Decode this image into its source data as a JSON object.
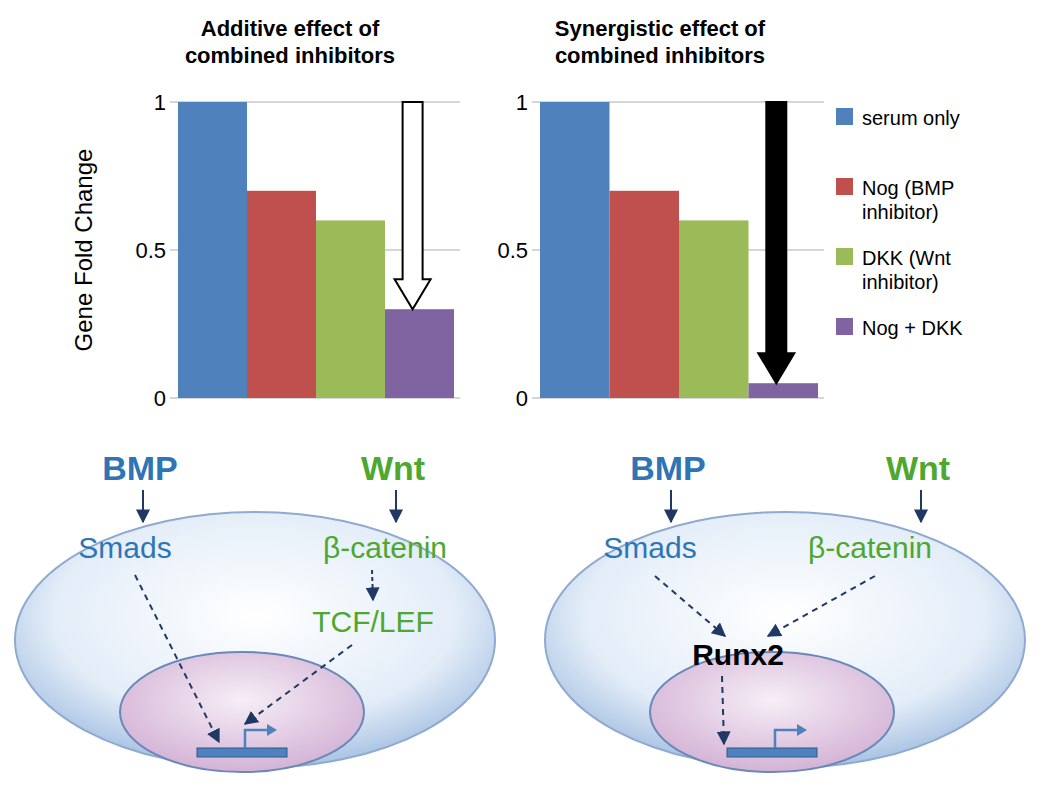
{
  "chart_data": [
    {
      "type": "bar",
      "title": "Additive effect of combined inhibitors",
      "ylabel": "Gene Fold Change",
      "categories": [
        "serum only",
        "Nog (BMP inhibitor)",
        "DKK (Wnt inhibitor)",
        "Nog + DKK"
      ],
      "values": [
        1,
        0.7,
        0.6,
        0.3
      ],
      "colors": [
        "#4f81bd",
        "#c0504d",
        "#9bbb59",
        "#8064a2"
      ],
      "ylim": [
        0,
        1
      ],
      "yticks": [
        0,
        0.5,
        1
      ],
      "grid": true,
      "tick_labels": "y"
    },
    {
      "type": "bar",
      "title": "Synergistic effect of combined inhibitors",
      "categories": [
        "serum only",
        "Nog (BMP inhibitor)",
        "DKK (Wnt inhibitor)",
        "Nog + DKK"
      ],
      "values": [
        1,
        0.7,
        0.6,
        0.05
      ],
      "colors": [
        "#4f81bd",
        "#c0504d",
        "#9bbb59",
        "#8064a2"
      ],
      "ylim": [
        0,
        1
      ],
      "yticks": [
        0,
        0.5,
        1
      ],
      "grid": true,
      "tick_labels": "y",
      "legend": "right"
    }
  ],
  "diagrams": [
    {
      "ligands": [
        "BMP",
        "Wnt"
      ],
      "effectors": [
        "Smads",
        "β-catenin"
      ],
      "mediator": "TCF/LEF"
    },
    {
      "ligands": [
        "BMP",
        "Wnt"
      ],
      "effectors": [
        "Smads",
        "β-catenin"
      ],
      "mediator": "Runx2"
    }
  ]
}
